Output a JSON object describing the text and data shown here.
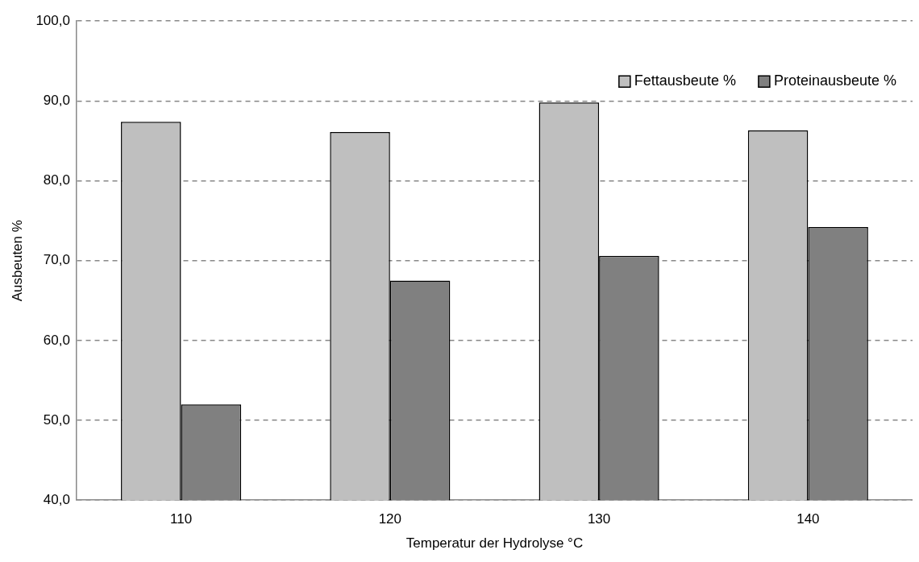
{
  "chart_data": {
    "type": "bar",
    "xlabel": "Temperatur der Hydrolyse °C",
    "ylabel": "Ausbeuten %",
    "categories": [
      "110",
      "120",
      "130",
      "140"
    ],
    "series": [
      {
        "name": "Fettausbeute %",
        "color": "#bfbfbf",
        "values": [
          87.4,
          86.1,
          89.8,
          86.3
        ]
      },
      {
        "name": "Proteinausbeute %",
        "color": "#808080",
        "values": [
          52.0,
          67.5,
          70.6,
          74.2
        ]
      }
    ],
    "ylim": [
      40,
      100
    ],
    "yticks": [
      {
        "value": 40,
        "label": "40,0"
      },
      {
        "value": 50,
        "label": "50,0"
      },
      {
        "value": 60,
        "label": "60,0"
      },
      {
        "value": 70,
        "label": "70,0"
      },
      {
        "value": 80,
        "label": "80,0"
      },
      {
        "value": 90,
        "label": "90,0"
      },
      {
        "value": 100,
        "label": "100,0"
      }
    ],
    "grid": "y",
    "legend": "top right"
  }
}
